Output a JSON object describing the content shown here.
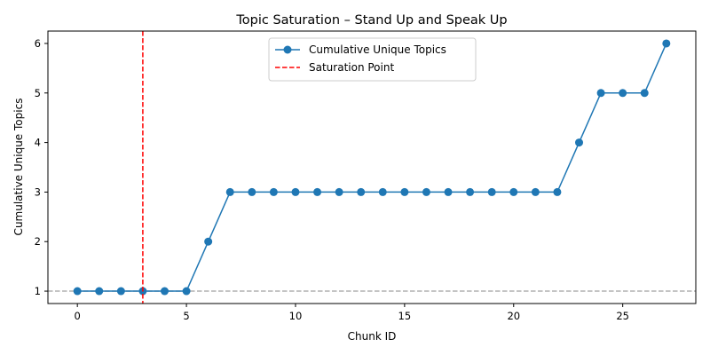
{
  "chart_data": {
    "type": "line",
    "title": "Topic Saturation – Stand Up and Speak Up",
    "xlabel": "Chunk ID",
    "ylabel": "Cumulative Unique Topics",
    "xlim": [
      -1.35,
      28.35
    ],
    "ylim": [
      0.75,
      6.25
    ],
    "x_ticks": [
      0,
      5,
      10,
      15,
      20,
      25
    ],
    "y_ticks": [
      1,
      2,
      3,
      4,
      5,
      6
    ],
    "grid": false,
    "legend_position": "top-center",
    "series": [
      {
        "name": "Cumulative Unique Topics",
        "color": "#1f77b4",
        "marker": "circle",
        "x": [
          0,
          1,
          2,
          3,
          4,
          5,
          6,
          7,
          8,
          9,
          10,
          11,
          12,
          13,
          14,
          15,
          16,
          17,
          18,
          19,
          20,
          21,
          22,
          23,
          24,
          25,
          26,
          27
        ],
        "y": [
          1,
          1,
          1,
          1,
          1,
          1,
          2,
          3,
          3,
          3,
          3,
          3,
          3,
          3,
          3,
          3,
          3,
          3,
          3,
          3,
          3,
          3,
          3,
          4,
          5,
          5,
          5,
          6
        ]
      }
    ],
    "reference_lines": [
      {
        "name": "Saturation Point",
        "orientation": "vertical",
        "value": 3,
        "color": "#ff0000",
        "style": "dashed",
        "in_legend": true
      },
      {
        "orientation": "horizontal",
        "value": 1,
        "color": "#b0b0b0",
        "style": "dashed",
        "in_legend": false
      }
    ]
  }
}
